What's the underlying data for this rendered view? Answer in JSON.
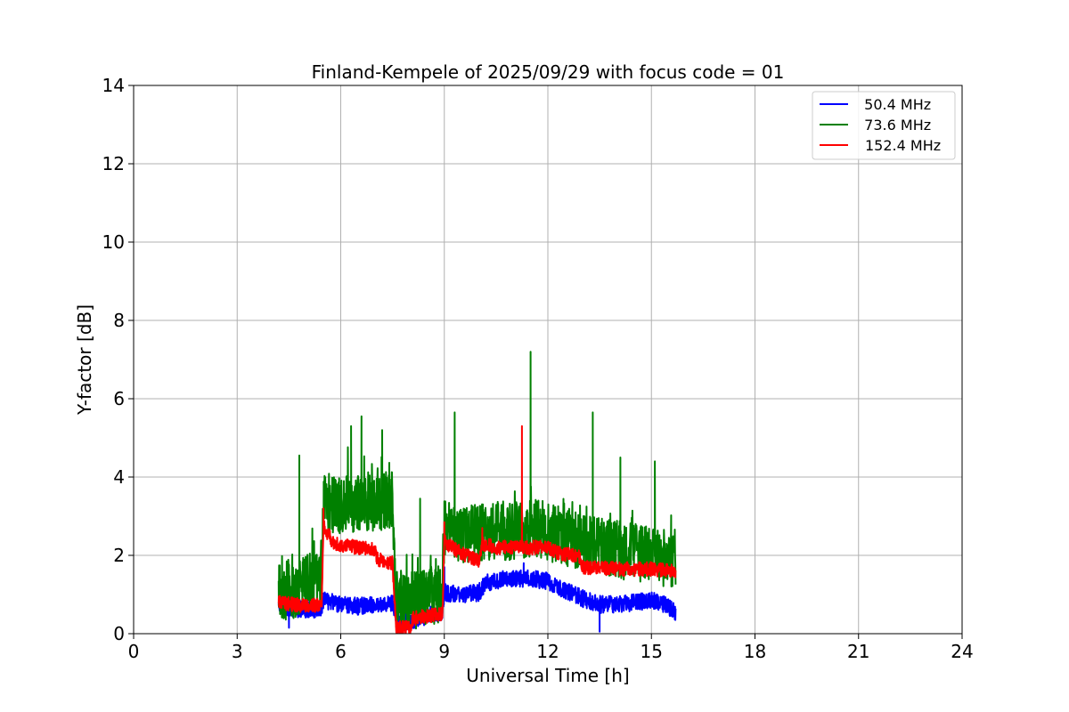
{
  "chart_data": {
    "type": "line",
    "title": "Finland-Kempele of 2025/09/29 with focus code = 01",
    "xlabel": "Universal Time [h]",
    "ylabel": "Y-factor [dB]",
    "xlim": [
      0,
      24
    ],
    "ylim": [
      0,
      14
    ],
    "xticks": [
      0,
      3,
      6,
      9,
      12,
      15,
      18,
      21,
      24
    ],
    "yticks": [
      0,
      2,
      4,
      6,
      8,
      10,
      12,
      14
    ],
    "grid": true,
    "legend_position": "top-right",
    "series": [
      {
        "name": "50.4 MHz",
        "label": "  50.4 MHz",
        "color": "#0000ff",
        "noise": 0.22,
        "points": [
          [
            4.2,
            0.7
          ],
          [
            4.6,
            0.65
          ],
          [
            5.0,
            0.6
          ],
          [
            5.45,
            0.65
          ],
          [
            5.5,
            0.85
          ],
          [
            6.0,
            0.75
          ],
          [
            6.5,
            0.7
          ],
          [
            7.0,
            0.75
          ],
          [
            7.5,
            0.8
          ],
          [
            7.6,
            0.35
          ],
          [
            8.0,
            0.3
          ],
          [
            8.5,
            0.45
          ],
          [
            8.95,
            0.55
          ],
          [
            9.0,
            1.05
          ],
          [
            9.5,
            1.0
          ],
          [
            10.0,
            1.05
          ],
          [
            10.2,
            1.3
          ],
          [
            10.8,
            1.4
          ],
          [
            11.5,
            1.4
          ],
          [
            12.0,
            1.35
          ],
          [
            12.5,
            1.1
          ],
          [
            13.0,
            0.9
          ],
          [
            13.5,
            0.75
          ],
          [
            14.0,
            0.75
          ],
          [
            14.5,
            0.8
          ],
          [
            15.0,
            0.85
          ],
          [
            15.4,
            0.75
          ],
          [
            15.7,
            0.55
          ]
        ],
        "spikes": [
          [
            4.5,
            0.15
          ],
          [
            9.0,
            1.7
          ],
          [
            11.3,
            1.8
          ],
          [
            13.5,
            0.05
          ]
        ]
      },
      {
        "name": "73.6 MHz",
        "label": "  73.6 MHz",
        "color": "#008000",
        "noise": 0.75,
        "points": [
          [
            4.2,
            1.1
          ],
          [
            4.6,
            1.1
          ],
          [
            5.0,
            1.3
          ],
          [
            5.45,
            1.35
          ],
          [
            5.5,
            3.35
          ],
          [
            6.0,
            3.3
          ],
          [
            6.5,
            3.3
          ],
          [
            7.0,
            3.35
          ],
          [
            7.5,
            3.4
          ],
          [
            7.6,
            0.9
          ],
          [
            8.0,
            0.85
          ],
          [
            8.5,
            0.9
          ],
          [
            8.95,
            1.0
          ],
          [
            9.0,
            2.65
          ],
          [
            9.5,
            2.55
          ],
          [
            10.0,
            2.6
          ],
          [
            10.5,
            2.65
          ],
          [
            11.0,
            2.6
          ],
          [
            11.5,
            2.7
          ],
          [
            12.0,
            2.6
          ],
          [
            12.5,
            2.5
          ],
          [
            13.0,
            2.3
          ],
          [
            13.5,
            2.2
          ],
          [
            14.0,
            2.15
          ],
          [
            14.5,
            2.1
          ],
          [
            15.0,
            2.0
          ],
          [
            15.4,
            1.9
          ],
          [
            15.7,
            1.9
          ]
        ],
        "spikes": [
          [
            4.8,
            4.55
          ],
          [
            6.3,
            5.3
          ],
          [
            6.6,
            5.55
          ],
          [
            7.2,
            5.2
          ],
          [
            8.3,
            3.45
          ],
          [
            9.3,
            5.65
          ],
          [
            11.5,
            7.2
          ],
          [
            13.3,
            5.65
          ],
          [
            14.1,
            4.5
          ],
          [
            15.1,
            4.4
          ]
        ]
      },
      {
        "name": "152.4 MHz",
        "label": "152.4 MHz",
        "color": "#ff0000",
        "noise": 0.18,
        "points": [
          [
            4.2,
            0.8
          ],
          [
            4.6,
            0.75
          ],
          [
            5.0,
            0.7
          ],
          [
            5.45,
            0.75
          ],
          [
            5.5,
            2.75
          ],
          [
            5.8,
            2.3
          ],
          [
            6.5,
            2.2
          ],
          [
            7.0,
            2.15
          ],
          [
            7.05,
            1.9
          ],
          [
            7.5,
            1.8
          ],
          [
            7.6,
            0.15
          ],
          [
            8.0,
            0.15
          ],
          [
            8.1,
            0.4
          ],
          [
            8.95,
            0.5
          ],
          [
            9.0,
            2.35
          ],
          [
            9.5,
            2.05
          ],
          [
            10.0,
            1.85
          ],
          [
            10.1,
            2.3
          ],
          [
            10.5,
            2.2
          ],
          [
            11.5,
            2.2
          ],
          [
            12.0,
            2.2
          ],
          [
            12.3,
            2.05
          ],
          [
            12.9,
            2.0
          ],
          [
            13.0,
            1.7
          ],
          [
            14.0,
            1.65
          ],
          [
            15.0,
            1.65
          ],
          [
            15.7,
            1.6
          ]
        ],
        "spikes": [
          [
            5.5,
            3.2
          ],
          [
            9.0,
            2.85
          ],
          [
            10.1,
            2.7
          ],
          [
            11.25,
            5.3
          ]
        ]
      }
    ]
  }
}
